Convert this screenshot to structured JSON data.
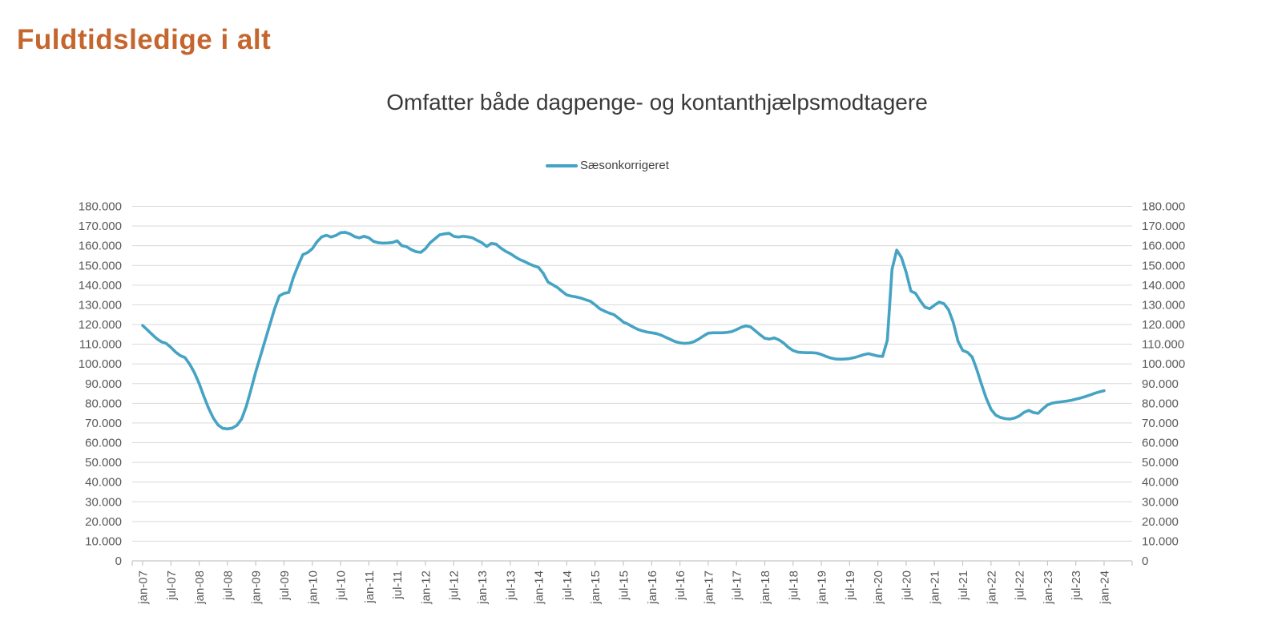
{
  "page": {
    "title": "Fuldtidsledige i alt"
  },
  "chart": {
    "subtitle": "Omfatter både dagpenge- og kontanthjælpsmodtagere",
    "legend_label": "Sæsonkorrigeret"
  },
  "colors": {
    "background": "#FFFFFF",
    "title": "#C4662E",
    "subtitle": "#3A3A3A",
    "series_line": "#45A3C3",
    "axis_text": "#595959",
    "gridline": "#D9D9D9",
    "axis_line": "#C6C6C6"
  },
  "chart_data": {
    "type": "line",
    "title": "Omfatter både dagpenge- og kontanthjælpsmodtagere",
    "legend": {
      "position": "top",
      "entries": [
        "Sæsonkorrigeret"
      ]
    },
    "grid": true,
    "x_frequency": "monthly",
    "x_start": "jan-07",
    "x_end": "jan-24",
    "x_tick_labels": [
      "jan-07",
      "jul-07",
      "jan-08",
      "jul-08",
      "jan-09",
      "jul-09",
      "jan-10",
      "jul-10",
      "jan-11",
      "jul-11",
      "jan-12",
      "jul-12",
      "jan-13",
      "jul-13",
      "jan-14",
      "jul-14",
      "jan-15",
      "jul-15",
      "jan-16",
      "jul-16",
      "jan-17",
      "jul-17",
      "jan-18",
      "jul-18",
      "jan-19",
      "jul-19",
      "jan-20",
      "jul-20",
      "jan-21",
      "jul-21",
      "jan-22",
      "jul-22",
      "jan-23",
      "jul-23",
      "jan-24"
    ],
    "y_tick_labels": [
      "0",
      "10.000",
      "20.000",
      "30.000",
      "40.000",
      "50.000",
      "60.000",
      "70.000",
      "80.000",
      "90.000",
      "100.000",
      "110.000",
      "120.000",
      "130.000",
      "140.000",
      "150.000",
      "160.000",
      "170.000",
      "180.000"
    ],
    "ylim": [
      0,
      180000
    ],
    "y_tick_step": 10000,
    "dual_y_axis": true,
    "series": [
      {
        "name": "Sæsonkorrigeret",
        "values": [
          119500,
          117300,
          115000,
          112800,
          111200,
          110400,
          108400,
          106000,
          104200,
          103200,
          99800,
          95500,
          90000,
          83500,
          77500,
          72500,
          69000,
          67300,
          67000,
          67400,
          68800,
          72000,
          78500,
          87000,
          96000,
          104000,
          112000,
          120000,
          128000,
          134500,
          135800,
          136300,
          144000,
          150000,
          155500,
          156500,
          158500,
          162000,
          164500,
          165300,
          164400,
          165200,
          166600,
          166800,
          166000,
          164600,
          164000,
          164800,
          164000,
          162200,
          161500,
          161300,
          161400,
          161600,
          162500,
          160000,
          159500,
          158000,
          157000,
          156600,
          158500,
          161500,
          163500,
          165500,
          166000,
          166300,
          164800,
          164400,
          164800,
          164500,
          164000,
          162700,
          161500,
          159600,
          161200,
          160800,
          158800,
          157200,
          156000,
          154400,
          153000,
          152000,
          150800,
          149800,
          149000,
          146000,
          141600,
          140200,
          138800,
          136800,
          135000,
          134400,
          134000,
          133400,
          132600,
          131800,
          130000,
          128000,
          126800,
          125800,
          125000,
          123200,
          121200,
          120200,
          118800,
          117600,
          116800,
          116200,
          115800,
          115400,
          114600,
          113500,
          112400,
          111300,
          110700,
          110400,
          110600,
          111300,
          112600,
          114200,
          115600,
          115800,
          115800,
          115800,
          116000,
          116400,
          117400,
          118600,
          119300,
          118800,
          116800,
          114800,
          113000,
          112600,
          113200,
          112200,
          110600,
          108400,
          106800,
          106000,
          105800,
          105700,
          105700,
          105500,
          104800,
          103800,
          103000,
          102500,
          102400,
          102500,
          102700,
          103200,
          103900,
          104700,
          105200,
          104600,
          104000,
          103800,
          112000,
          148000,
          157800,
          154000,
          146500,
          137000,
          135800,
          132000,
          128800,
          128000,
          129800,
          131400,
          130600,
          127500,
          121000,
          111500,
          106800,
          105900,
          103500,
          97000,
          89500,
          82500,
          77000,
          74000,
          72800,
          72200,
          72000,
          72500,
          73600,
          75400,
          76400,
          75300,
          74900,
          77200,
          79200,
          80100,
          80500,
          80800,
          81100,
          81500,
          82100,
          82700,
          83400,
          84200,
          85100,
          85800,
          86400
        ]
      }
    ]
  }
}
